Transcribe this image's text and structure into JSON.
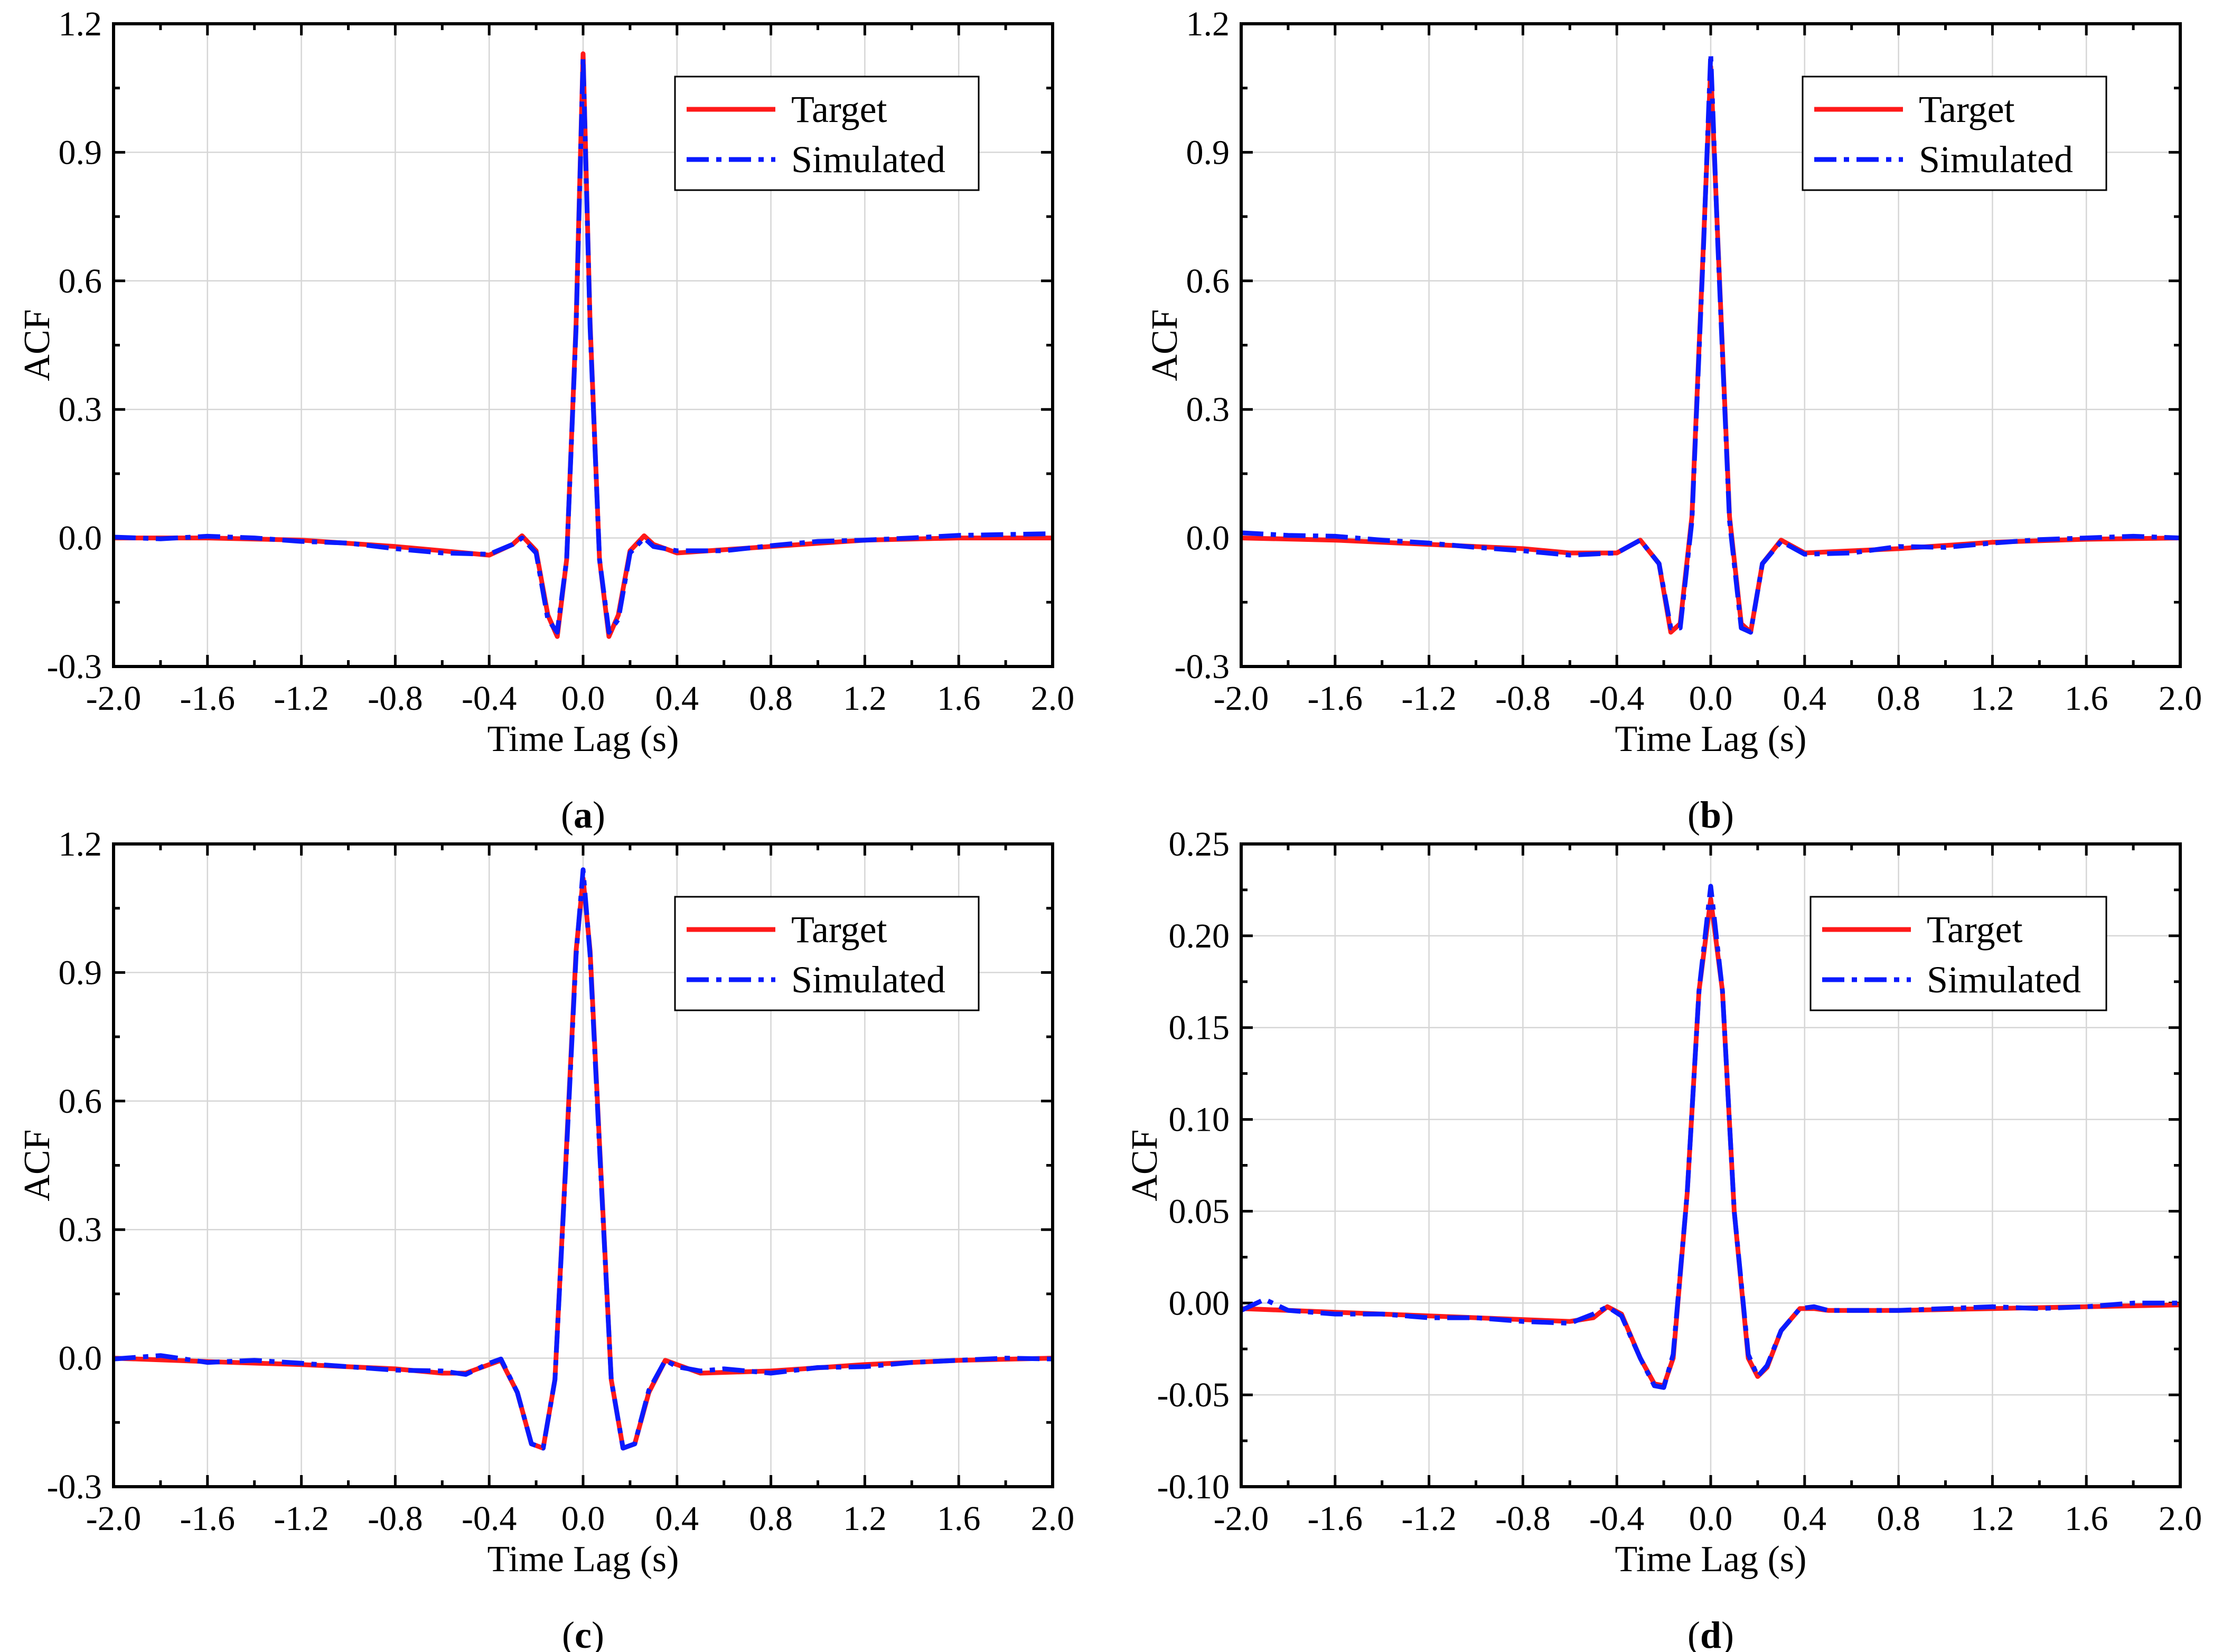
{
  "chart_data": [
    {
      "id": "a",
      "type": "line",
      "caption": {
        "open": "(",
        "letter": "a",
        "close": ")"
      },
      "xlabel": "Time Lag (s)",
      "ylabel": "ACF",
      "xlim": [
        -2.0,
        2.0
      ],
      "ylim": [
        -0.3,
        1.2
      ],
      "xticks": [
        "-2.0",
        "-1.6",
        "-1.2",
        "-0.8",
        "-0.4",
        "0.0",
        "0.4",
        "0.8",
        "1.2",
        "1.6",
        "2.0"
      ],
      "yticks": [
        "-0.3",
        "0.0",
        "0.3",
        "0.6",
        "0.9",
        "1.2"
      ],
      "grid": true,
      "legend_position": "top-right",
      "series": [
        {
          "name": "Target",
          "color": "#ff1a1a",
          "style": "solid",
          "x": [
            -2.0,
            -1.6,
            -1.2,
            -0.8,
            -0.6,
            -0.4,
            -0.3,
            -0.26,
            -0.2,
            -0.15,
            -0.11,
            -0.07,
            -0.03,
            0.0,
            0.03,
            0.07,
            0.11,
            0.15,
            0.2,
            0.26,
            0.3,
            0.4,
            0.8,
            1.2,
            1.6,
            2.0
          ],
          "y": [
            0.0,
            0.0,
            -0.005,
            -0.02,
            -0.03,
            -0.04,
            -0.015,
            0.005,
            -0.03,
            -0.18,
            -0.23,
            -0.05,
            0.5,
            1.13,
            0.5,
            -0.05,
            -0.23,
            -0.18,
            -0.03,
            0.005,
            -0.015,
            -0.035,
            -0.02,
            -0.005,
            0.0,
            0.0
          ]
        },
        {
          "name": "Simulated",
          "color": "#0a1aff",
          "style": "dashdot",
          "x": [
            -2.0,
            -1.8,
            -1.6,
            -1.4,
            -1.2,
            -1.0,
            -0.8,
            -0.6,
            -0.4,
            -0.3,
            -0.26,
            -0.2,
            -0.15,
            -0.11,
            -0.07,
            -0.03,
            0.0,
            0.03,
            0.07,
            0.11,
            0.15,
            0.2,
            0.26,
            0.3,
            0.4,
            0.6,
            0.8,
            1.0,
            1.2,
            1.4,
            1.6,
            1.8,
            2.0
          ],
          "y": [
            0.002,
            -0.002,
            0.004,
            0.0,
            -0.008,
            -0.012,
            -0.025,
            -0.035,
            -0.038,
            -0.015,
            0.0,
            -0.035,
            -0.19,
            -0.22,
            -0.05,
            0.49,
            1.12,
            0.49,
            -0.05,
            -0.22,
            -0.19,
            -0.035,
            0.0,
            -0.02,
            -0.03,
            -0.03,
            -0.018,
            -0.008,
            -0.005,
            0.0,
            0.006,
            0.008,
            0.01
          ]
        }
      ]
    },
    {
      "id": "b",
      "type": "line",
      "caption": {
        "open": "(",
        "letter": "b",
        "close": ")"
      },
      "xlabel": "Time Lag (s)",
      "ylabel": "ACF",
      "xlim": [
        -2.0,
        2.0
      ],
      "ylim": [
        -0.3,
        1.2
      ],
      "xticks": [
        "-2.0",
        "-1.6",
        "-1.2",
        "-0.8",
        "-0.4",
        "0.0",
        "0.4",
        "0.8",
        "1.2",
        "1.6",
        "2.0"
      ],
      "yticks": [
        "-0.3",
        "0.0",
        "0.3",
        "0.6",
        "0.9",
        "1.2"
      ],
      "grid": true,
      "legend_position": "top-right",
      "series": [
        {
          "name": "Target",
          "color": "#ff1a1a",
          "style": "solid",
          "x": [
            -2.0,
            -1.6,
            -1.2,
            -0.8,
            -0.6,
            -0.4,
            -0.3,
            -0.22,
            -0.17,
            -0.13,
            -0.08,
            -0.03,
            0.0,
            0.03,
            0.08,
            0.13,
            0.17,
            0.22,
            0.3,
            0.4,
            0.8,
            1.2,
            1.6,
            2.0
          ],
          "y": [
            0.0,
            -0.005,
            -0.015,
            -0.025,
            -0.035,
            -0.035,
            -0.005,
            -0.06,
            -0.22,
            -0.2,
            0.05,
            0.7,
            1.1,
            0.7,
            0.05,
            -0.2,
            -0.22,
            -0.06,
            -0.005,
            -0.035,
            -0.025,
            -0.01,
            -0.003,
            0.0
          ]
        },
        {
          "name": "Simulated",
          "color": "#0a1aff",
          "style": "dashdot",
          "x": [
            -2.0,
            -1.8,
            -1.6,
            -1.4,
            -1.2,
            -1.0,
            -0.8,
            -0.6,
            -0.4,
            -0.3,
            -0.22,
            -0.17,
            -0.13,
            -0.08,
            -0.03,
            0.0,
            0.03,
            0.08,
            0.13,
            0.17,
            0.22,
            0.3,
            0.4,
            0.6,
            0.8,
            1.0,
            1.2,
            1.4,
            1.6,
            1.8,
            2.0
          ],
          "y": [
            0.012,
            0.006,
            0.004,
            -0.005,
            -0.012,
            -0.022,
            -0.03,
            -0.04,
            -0.035,
            -0.005,
            -0.06,
            -0.21,
            -0.21,
            0.04,
            0.69,
            1.13,
            0.69,
            0.04,
            -0.21,
            -0.22,
            -0.06,
            -0.008,
            -0.038,
            -0.035,
            -0.02,
            -0.022,
            -0.012,
            -0.004,
            0.0,
            0.004,
            0.0
          ]
        }
      ]
    },
    {
      "id": "c",
      "type": "line",
      "caption": {
        "open": "(",
        "letter": "c",
        "close": ")"
      },
      "xlabel": "Time Lag (s)",
      "ylabel": "ACF",
      "xlim": [
        -2.0,
        2.0
      ],
      "ylim": [
        -0.3,
        1.2
      ],
      "xticks": [
        "-2.0",
        "-1.6",
        "-1.2",
        "-0.8",
        "-0.4",
        "0.0",
        "0.4",
        "0.8",
        "1.2",
        "1.6",
        "2.0"
      ],
      "yticks": [
        "-0.3",
        "0.0",
        "0.3",
        "0.6",
        "0.9",
        "1.2"
      ],
      "grid": true,
      "legend_position": "top-right",
      "series": [
        {
          "name": "Target",
          "color": "#ff1a1a",
          "style": "solid",
          "x": [
            -2.0,
            -1.6,
            -1.2,
            -0.8,
            -0.6,
            -0.5,
            -0.4,
            -0.35,
            -0.28,
            -0.22,
            -0.17,
            -0.12,
            -0.07,
            -0.03,
            0.0,
            0.03,
            0.07,
            0.12,
            0.17,
            0.22,
            0.28,
            0.35,
            0.4,
            0.5,
            0.8,
            1.2,
            1.6,
            2.0
          ],
          "y": [
            0.0,
            -0.008,
            -0.015,
            -0.025,
            -0.035,
            -0.035,
            -0.015,
            -0.005,
            -0.08,
            -0.2,
            -0.21,
            -0.05,
            0.5,
            0.95,
            1.12,
            0.95,
            0.5,
            -0.05,
            -0.21,
            -0.2,
            -0.08,
            -0.005,
            -0.015,
            -0.035,
            -0.03,
            -0.015,
            -0.005,
            0.0
          ]
        },
        {
          "name": "Simulated",
          "color": "#0a1aff",
          "style": "dashdot",
          "x": [
            -2.0,
            -1.8,
            -1.6,
            -1.4,
            -1.2,
            -1.0,
            -0.8,
            -0.6,
            -0.5,
            -0.4,
            -0.35,
            -0.28,
            -0.22,
            -0.17,
            -0.12,
            -0.07,
            -0.03,
            0.0,
            0.03,
            0.07,
            0.12,
            0.17,
            0.22,
            0.28,
            0.35,
            0.4,
            0.5,
            0.6,
            0.8,
            1.0,
            1.2,
            1.4,
            1.6,
            1.8,
            2.0
          ],
          "y": [
            -0.002,
            0.006,
            -0.01,
            -0.005,
            -0.012,
            -0.02,
            -0.028,
            -0.03,
            -0.038,
            -0.012,
            -0.002,
            -0.08,
            -0.2,
            -0.21,
            -0.05,
            0.49,
            0.94,
            1.14,
            0.94,
            0.49,
            -0.05,
            -0.21,
            -0.2,
            -0.075,
            -0.005,
            -0.02,
            -0.03,
            -0.025,
            -0.035,
            -0.022,
            -0.02,
            -0.01,
            -0.005,
            0.0,
            -0.002
          ]
        }
      ]
    },
    {
      "id": "d",
      "type": "line",
      "caption": {
        "open": "(",
        "letter": "d",
        "close": ")"
      },
      "xlabel": "Time Lag (s)",
      "ylabel": "ACF",
      "xlim": [
        -2.0,
        2.0
      ],
      "ylim": [
        -0.1,
        0.25
      ],
      "xticks": [
        "-2.0",
        "-1.6",
        "-1.2",
        "-0.8",
        "-0.4",
        "0.0",
        "0.4",
        "0.8",
        "1.2",
        "1.6",
        "2.0"
      ],
      "yticks": [
        "-0.10",
        "-0.05",
        "0.00",
        "0.05",
        "0.10",
        "0.15",
        "0.20",
        "0.25"
      ],
      "grid": true,
      "legend_position": "top-right",
      "series": [
        {
          "name": "Target",
          "color": "#ff1a1a",
          "style": "solid",
          "x": [
            -2.0,
            -1.6,
            -1.2,
            -0.8,
            -0.6,
            -0.5,
            -0.44,
            -0.38,
            -0.3,
            -0.24,
            -0.2,
            -0.16,
            -0.1,
            -0.05,
            0.0,
            0.05,
            0.1,
            0.16,
            0.2,
            0.24,
            0.3,
            0.38,
            0.44,
            0.5,
            0.8,
            1.2,
            1.6,
            2.0
          ],
          "y": [
            -0.003,
            -0.005,
            -0.007,
            -0.009,
            -0.01,
            -0.008,
            -0.002,
            -0.006,
            -0.03,
            -0.044,
            -0.045,
            -0.03,
            0.06,
            0.17,
            0.22,
            0.17,
            0.05,
            -0.03,
            -0.04,
            -0.035,
            -0.015,
            -0.003,
            -0.003,
            -0.004,
            -0.004,
            -0.003,
            -0.002,
            -0.001
          ]
        },
        {
          "name": "Simulated",
          "color": "#0a1aff",
          "style": "dashdot",
          "x": [
            -2.0,
            -1.9,
            -1.8,
            -1.6,
            -1.4,
            -1.2,
            -1.0,
            -0.8,
            -0.6,
            -0.5,
            -0.44,
            -0.38,
            -0.3,
            -0.24,
            -0.2,
            -0.16,
            -0.1,
            -0.05,
            0.0,
            0.05,
            0.1,
            0.16,
            0.2,
            0.24,
            0.3,
            0.38,
            0.44,
            0.5,
            0.8,
            1.0,
            1.2,
            1.4,
            1.6,
            1.8,
            2.0
          ],
          "y": [
            -0.004,
            0.002,
            -0.004,
            -0.006,
            -0.006,
            -0.008,
            -0.008,
            -0.01,
            -0.011,
            -0.006,
            -0.002,
            -0.007,
            -0.03,
            -0.045,
            -0.046,
            -0.028,
            0.06,
            0.17,
            0.227,
            0.17,
            0.05,
            -0.028,
            -0.04,
            -0.034,
            -0.015,
            -0.003,
            -0.002,
            -0.004,
            -0.004,
            -0.003,
            -0.002,
            -0.003,
            -0.002,
            0.0,
            0.0
          ]
        }
      ]
    }
  ]
}
